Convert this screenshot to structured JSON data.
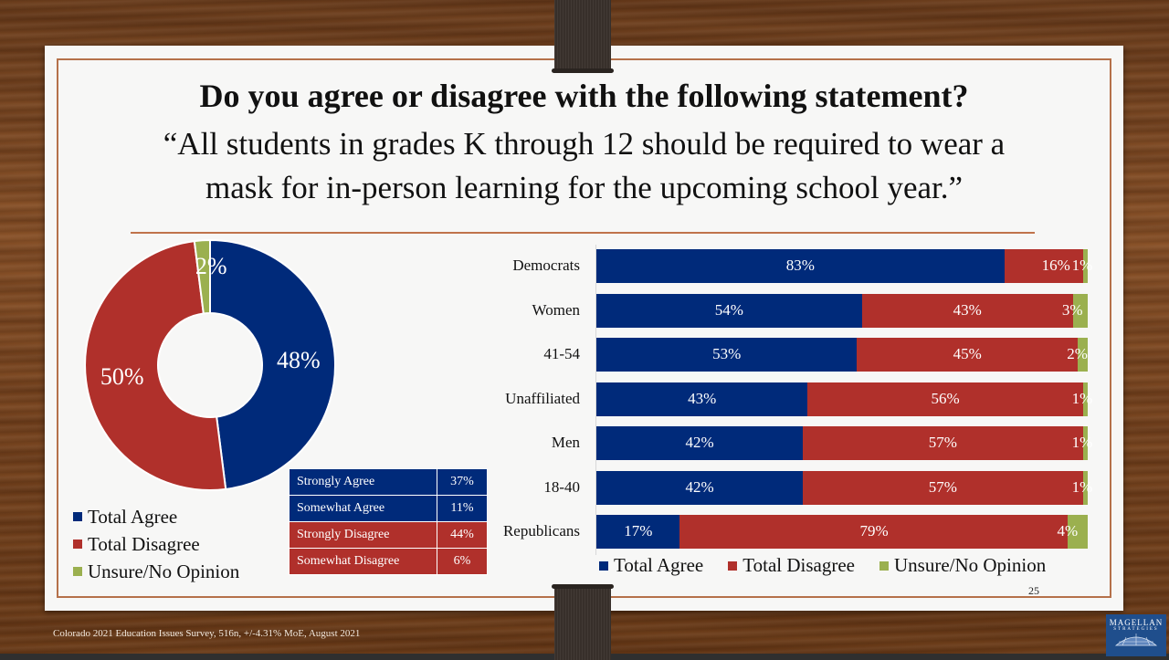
{
  "slide": {
    "title": "Do you agree or disagree with the following statement?",
    "subtitle_line1": "“All students in grades K through 12 should be required to wear a",
    "subtitle_line2": "mask for in-person learning for the upcoming school year.”",
    "page_number": "25",
    "footer": "Colorado 2021 Education Issues Survey, 516n, +/-4.31% MoE, August 2021",
    "logo_line1": "MAGELLAN",
    "logo_line2": "STRATEGIES"
  },
  "colors": {
    "agree": "#002a7a",
    "disagree": "#b0302b",
    "unsure": "#9bb04f"
  },
  "chart_data": [
    {
      "type": "pie",
      "subtype": "donut",
      "title": "",
      "slices": [
        {
          "name": "Total Agree",
          "value": 48,
          "label": "48%"
        },
        {
          "name": "Total Disagree",
          "value": 50,
          "label": "50%"
        },
        {
          "name": "Unsure/No Opinion",
          "value": 2,
          "label": "2%"
        }
      ],
      "legend": [
        "Total Agree",
        "Total Disagree",
        "Unsure/No Opinion"
      ],
      "legend_position": "bottom-left"
    },
    {
      "type": "table",
      "rows": [
        {
          "label": "Strongly Agree",
          "value": "37%",
          "group": "agree"
        },
        {
          "label": "Somewhat Agree",
          "value": "11%",
          "group": "agree"
        },
        {
          "label": "Strongly Disagree",
          "value": "44%",
          "group": "disagree"
        },
        {
          "label": "Somewhat Disagree",
          "value": "6%",
          "group": "disagree"
        }
      ]
    },
    {
      "type": "bar",
      "orientation": "horizontal",
      "stacked": true,
      "categories": [
        "Democrats",
        "Women",
        "41-54",
        "Unaffiliated",
        "Men",
        "18-40",
        "Republicans"
      ],
      "series": [
        {
          "name": "Total Agree",
          "values": [
            83,
            54,
            53,
            43,
            42,
            42,
            17
          ]
        },
        {
          "name": "Total Disagree",
          "values": [
            16,
            43,
            45,
            56,
            57,
            57,
            79
          ]
        },
        {
          "name": "Unsure/No Opinion",
          "values": [
            1,
            3,
            2,
            1,
            1,
            1,
            4
          ]
        }
      ],
      "xlim": [
        0,
        100
      ],
      "legend": [
        "Total Agree",
        "Total Disagree",
        "Unsure/No Opinion"
      ],
      "legend_position": "bottom"
    }
  ]
}
